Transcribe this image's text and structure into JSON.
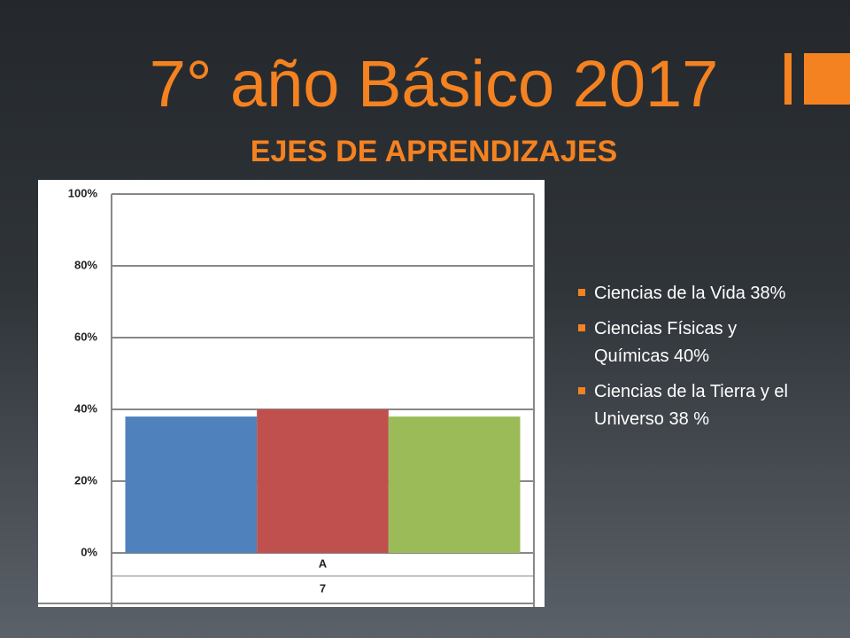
{
  "header": {
    "title": "7° año Básico 2017",
    "subtitle": "EJES DE APRENDIZAJES"
  },
  "bullets": [
    "Ciencias de la Vida 38%",
    "Ciencias Físicas y Químicas 40%",
    "Ciencias de la Tierra y el Universo 38 %"
  ],
  "chart_data": {
    "type": "bar",
    "categories": [
      "A"
    ],
    "sub_categories": [
      "7"
    ],
    "series": [
      {
        "color": "#4f81bd",
        "values": [
          38
        ]
      },
      {
        "color": "#c0504d",
        "values": [
          40
        ]
      },
      {
        "color": "#9bbb59",
        "values": [
          38
        ]
      }
    ],
    "ylim": [
      0,
      100
    ],
    "yticks": [
      {
        "value": 0,
        "label": "0%"
      },
      {
        "value": 20,
        "label": "20%"
      },
      {
        "value": 40,
        "label": "40%"
      },
      {
        "value": 60,
        "label": "60%"
      },
      {
        "value": 80,
        "label": "80%"
      },
      {
        "value": 100,
        "label": "100%"
      }
    ],
    "grid": true
  }
}
